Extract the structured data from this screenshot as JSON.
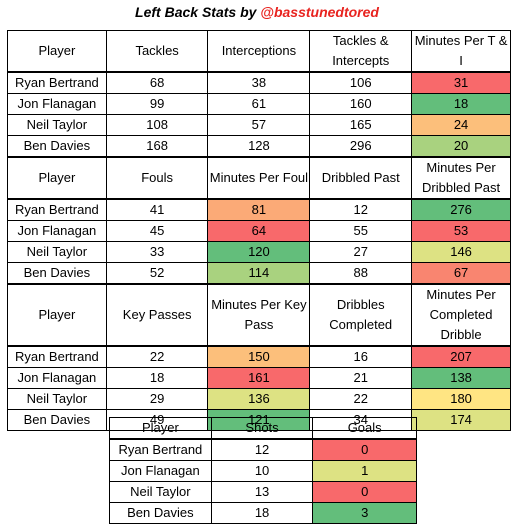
{
  "title": {
    "prefix": "Left Back Stats by ",
    "handle": "@basstunedtored"
  },
  "sections": [
    {
      "headers": [
        "Player",
        "Tackles",
        "Interceptions",
        "Tackles & Intercepts",
        "Minutes Per T & I"
      ],
      "rows": [
        [
          "Ryan Bertrand",
          "68",
          "38",
          "106",
          "31"
        ],
        [
          "Jon Flanagan",
          "99",
          "61",
          "160",
          "18"
        ],
        [
          "Neil Taylor",
          "108",
          "57",
          "165",
          "24"
        ],
        [
          "Ben Davies",
          "168",
          "128",
          "296",
          "20"
        ]
      ]
    },
    {
      "headers": [
        "Player",
        "Fouls",
        "Minutes Per Foul",
        "Dribbled Past",
        "Minutes Per Dribbled Past"
      ],
      "rows": [
        [
          "Ryan Bertrand",
          "41",
          "81",
          "12",
          "276"
        ],
        [
          "Jon Flanagan",
          "45",
          "64",
          "55",
          "53"
        ],
        [
          "Neil Taylor",
          "33",
          "120",
          "27",
          "146"
        ],
        [
          "Ben Davies",
          "52",
          "114",
          "88",
          "67"
        ]
      ]
    },
    {
      "headers": [
        "Player",
        "Key Passes",
        "Minutes Per Key Pass",
        "Dribbles Completed",
        "Minutes Per Completed Dribble"
      ],
      "rows": [
        [
          "Ryan Bertrand",
          "22",
          "150",
          "16",
          "207"
        ],
        [
          "Jon Flanagan",
          "18",
          "161",
          "21",
          "138"
        ],
        [
          "Neil Taylor",
          "29",
          "136",
          "22",
          "180"
        ],
        [
          "Ben Davies",
          "49",
          "121",
          "34",
          "174"
        ]
      ]
    }
  ],
  "shots": {
    "headers": [
      "Player",
      "Shots",
      "Goals"
    ],
    "rows": [
      [
        "Ryan Bertrand",
        "12",
        "0"
      ],
      [
        "Jon Flanagan",
        "10",
        "1"
      ],
      [
        "Neil Taylor",
        "13",
        "0"
      ],
      [
        "Ben Davies",
        "18",
        "3"
      ]
    ]
  },
  "colors": {
    "red": "#f8696b",
    "orange_red": "#f98570",
    "orange": "#fbaa77",
    "light_orange": "#fcbf7b",
    "yellow": "#ffe583",
    "yellow_green": "#dde283",
    "light_green": "#a9d27f",
    "green": "#63be7b"
  }
}
